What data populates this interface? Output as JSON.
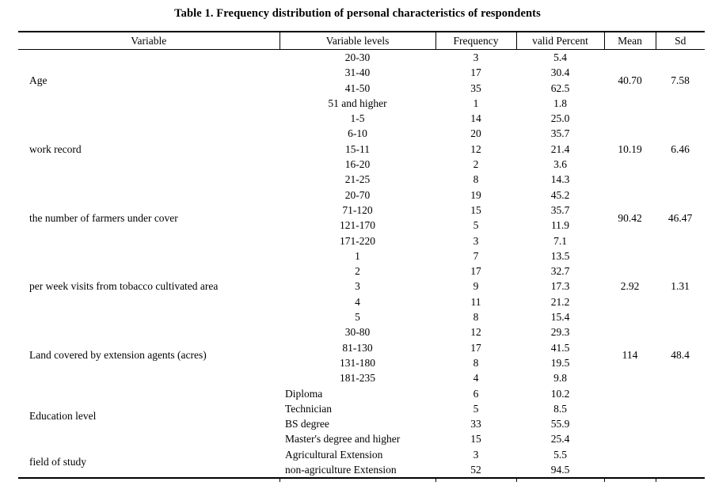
{
  "title": "Table 1. Frequency distribution of personal characteristics of respondents",
  "colors": {
    "text": "#000000",
    "background": "#ffffff",
    "rule": "#000000"
  },
  "table": {
    "headers": [
      "Variable",
      "Variable levels",
      "Frequency",
      "valid Percent",
      "Mean",
      "Sd"
    ],
    "groups": [
      {
        "variable": "Age",
        "levels_align": "center",
        "mean": "40.70",
        "sd": "7.58",
        "rows": [
          {
            "level": "20-30",
            "frequency": "3",
            "percent": "5.4"
          },
          {
            "level": "31-40",
            "frequency": "17",
            "percent": "30.4"
          },
          {
            "level": "41-50",
            "frequency": "35",
            "percent": "62.5"
          },
          {
            "level": "51 and higher",
            "frequency": "1",
            "percent": "1.8"
          }
        ]
      },
      {
        "variable": "work record",
        "levels_align": "center",
        "mean": "10.19",
        "sd": "6.46",
        "rows": [
          {
            "level": "1-5",
            "frequency": "14",
            "percent": "25.0"
          },
          {
            "level": "6-10",
            "frequency": "20",
            "percent": "35.7"
          },
          {
            "level": "15-11",
            "frequency": "12",
            "percent": "21.4"
          },
          {
            "level": "16-20",
            "frequency": "2",
            "percent": "3.6"
          },
          {
            "level": "21-25",
            "frequency": "8",
            "percent": "14.3"
          }
        ]
      },
      {
        "variable": "the number of farmers under cover",
        "levels_align": "center",
        "mean": "90.42",
        "sd": "46.47",
        "rows": [
          {
            "level": "20-70",
            "frequency": "19",
            "percent": "45.2"
          },
          {
            "level": "71-120",
            "frequency": "15",
            "percent": "35.7"
          },
          {
            "level": "121-170",
            "frequency": "5",
            "percent": "11.9"
          },
          {
            "level": "171-220",
            "frequency": "3",
            "percent": "7.1"
          }
        ]
      },
      {
        "variable": "per week visits from tobacco cultivated area",
        "levels_align": "center",
        "mean": "2.92",
        "sd": "1.31",
        "rows": [
          {
            "level": "1",
            "frequency": "7",
            "percent": "13.5"
          },
          {
            "level": "2",
            "frequency": "17",
            "percent": "32.7"
          },
          {
            "level": "3",
            "frequency": "9",
            "percent": "17.3"
          },
          {
            "level": "4",
            "frequency": "11",
            "percent": "21.2"
          },
          {
            "level": "5",
            "frequency": "8",
            "percent": "15.4"
          }
        ]
      },
      {
        "variable": "Land covered by extension agents (acres)",
        "levels_align": "center",
        "mean": "114",
        "sd": "48.4",
        "rows": [
          {
            "level": "30-80",
            "frequency": "12",
            "percent": "29.3"
          },
          {
            "level": "81-130",
            "frequency": "17",
            "percent": "41.5"
          },
          {
            "level": "131-180",
            "frequency": "8",
            "percent": "19.5"
          },
          {
            "level": "181-235",
            "frequency": "4",
            "percent": "9.8"
          }
        ]
      },
      {
        "variable": "Education level",
        "levels_align": "left",
        "mean": "",
        "sd": "",
        "rows": [
          {
            "level": "Diploma",
            "frequency": "6",
            "percent": "10.2"
          },
          {
            "level": "Technician",
            "frequency": "5",
            "percent": "8.5"
          },
          {
            "level": "BS degree",
            "frequency": "33",
            "percent": "55.9"
          },
          {
            "level": "Master's degree and higher",
            "frequency": "15",
            "percent": "25.4"
          }
        ]
      },
      {
        "variable": "field of study",
        "levels_align": "left",
        "mean": "",
        "sd": "",
        "rows": [
          {
            "level": "Agricultural Extension",
            "frequency": "3",
            "percent": "5.5"
          },
          {
            "level": "non-agriculture Extension",
            "frequency": "52",
            "percent": "94.5"
          }
        ]
      }
    ]
  }
}
